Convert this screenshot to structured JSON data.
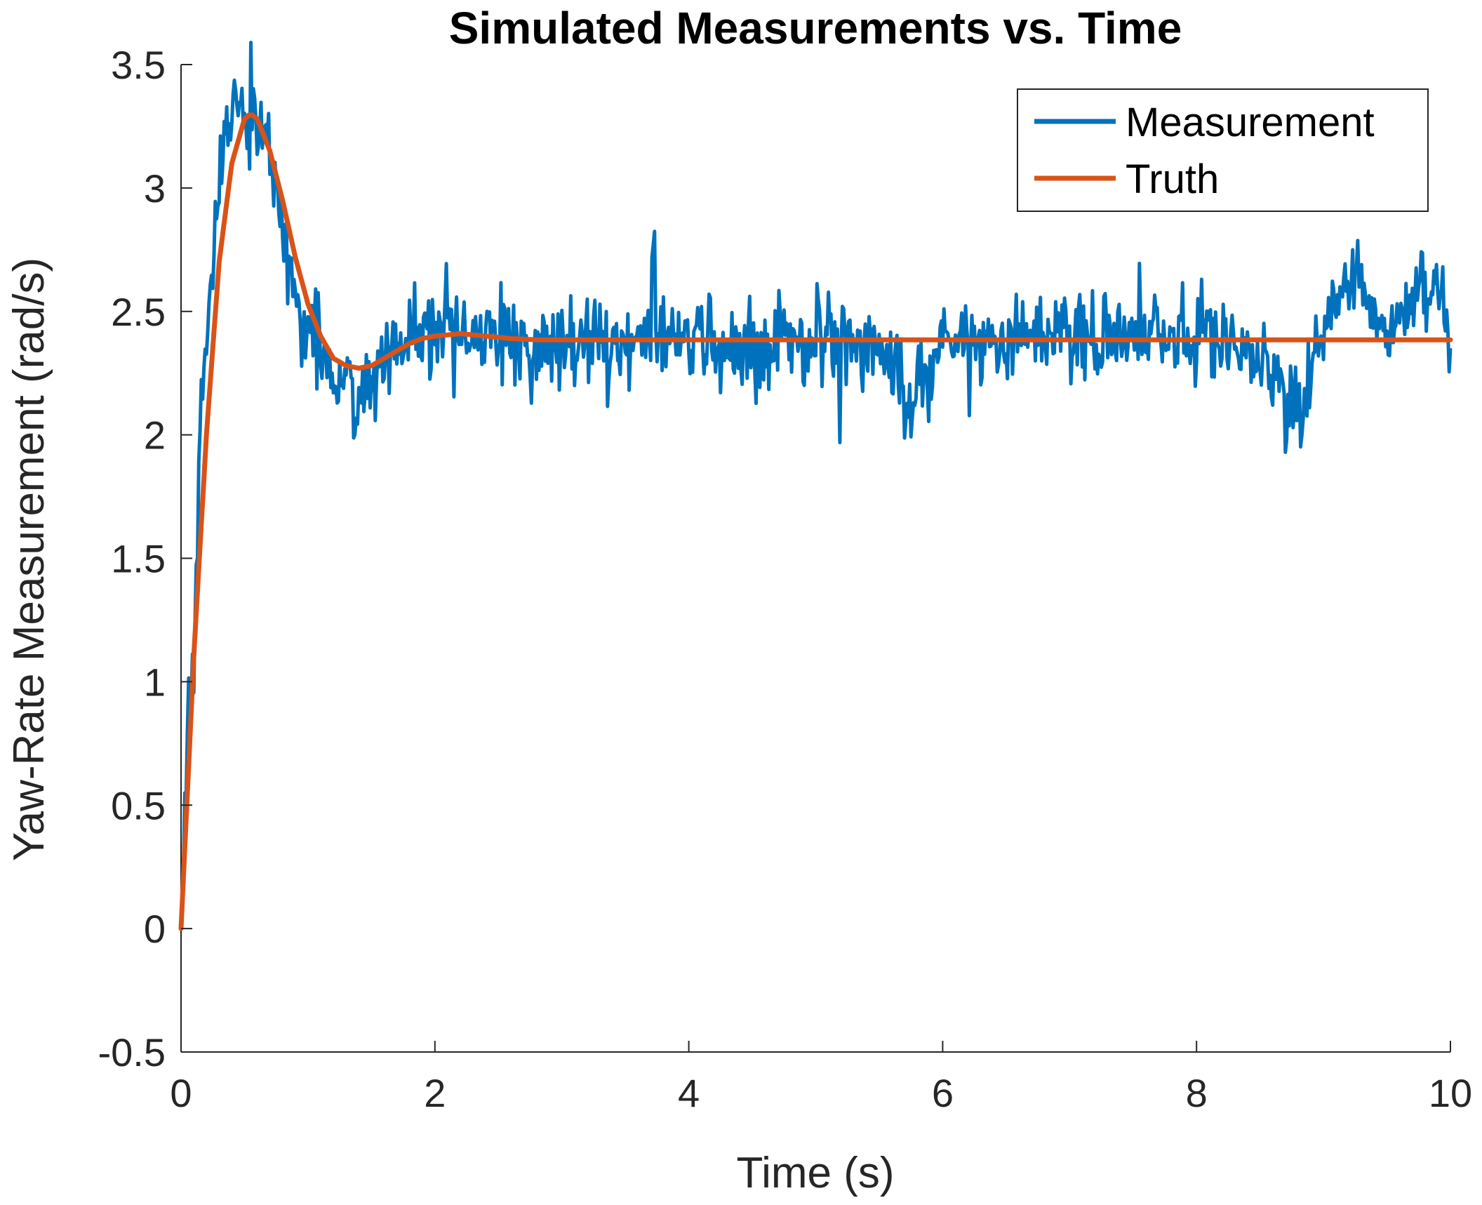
{
  "chart_data": {
    "type": "line",
    "title": "Simulated Measurements vs. Time",
    "xlabel": "Time (s)",
    "ylabel": "Yaw-Rate Measurement (rad/s)",
    "xlim": [
      0,
      10
    ],
    "ylim": [
      -0.5,
      3.5
    ],
    "xticks": [
      0,
      2,
      4,
      6,
      8,
      10
    ],
    "xtick_labels": [
      "0",
      "2",
      "4",
      "6",
      "8",
      "10"
    ],
    "yticks": [
      -0.5,
      0,
      0.5,
      1,
      1.5,
      2,
      2.5,
      3,
      3.5
    ],
    "ytick_labels": [
      "-0.5",
      "0",
      "0.5",
      "1",
      "1.5",
      "2",
      "2.5",
      "3",
      "3.5"
    ],
    "grid": false,
    "legend_position": "top-right",
    "series": [
      {
        "name": "Measurement",
        "color": "#0072BD",
        "noise_std": 0.09,
        "x": [
          0,
          0.05,
          0.1,
          0.15,
          0.2,
          0.25,
          0.3,
          0.35,
          0.4,
          0.45,
          0.5,
          0.55,
          0.6,
          0.65,
          0.7,
          0.75,
          0.8,
          0.85,
          0.9,
          0.95,
          1.0,
          1.1,
          1.2,
          1.3,
          1.4,
          1.5,
          1.6,
          1.7,
          1.8,
          2.0,
          2.2,
          2.4,
          2.6,
          2.8,
          3.0,
          3.2,
          3.5,
          3.7,
          3.72,
          3.75,
          4.0,
          4.5,
          5.0,
          5.5,
          5.75,
          6.0,
          6.5,
          7.0,
          7.5,
          8.0,
          8.5,
          8.8,
          9.0,
          9.2,
          9.5,
          9.9,
          10.0
        ],
        "y": [
          0.0,
          0.75,
          1.05,
          1.95,
          2.45,
          2.75,
          3.05,
          3.2,
          3.3,
          3.42,
          3.25,
          3.4,
          3.22,
          3.28,
          3.15,
          3.0,
          2.82,
          2.68,
          2.55,
          2.5,
          2.42,
          2.35,
          2.25,
          2.22,
          2.18,
          2.2,
          2.3,
          2.35,
          2.4,
          2.38,
          2.42,
          2.36,
          2.4,
          2.35,
          2.38,
          2.4,
          2.36,
          2.4,
          2.82,
          2.35,
          2.38,
          2.36,
          2.4,
          2.38,
          2.12,
          2.4,
          2.36,
          2.42,
          2.38,
          2.4,
          2.35,
          2.07,
          2.4,
          2.7,
          2.38,
          2.66,
          2.34
        ]
      },
      {
        "name": "Truth",
        "color": "#D95319",
        "x": [
          0,
          0.1,
          0.2,
          0.3,
          0.4,
          0.5,
          0.55,
          0.6,
          0.7,
          0.8,
          0.9,
          1.0,
          1.1,
          1.2,
          1.3,
          1.4,
          1.5,
          1.6,
          1.7,
          1.8,
          1.9,
          2.0,
          2.2,
          2.4,
          2.6,
          2.8,
          3.0,
          3.5,
          4.0,
          5.0,
          6.0,
          7.0,
          8.0,
          9.0,
          10.0
        ],
        "y": [
          0.0,
          1.1,
          2.0,
          2.7,
          3.1,
          3.28,
          3.3,
          3.28,
          3.15,
          2.95,
          2.72,
          2.53,
          2.4,
          2.31,
          2.28,
          2.27,
          2.28,
          2.31,
          2.34,
          2.37,
          2.39,
          2.4,
          2.41,
          2.4,
          2.39,
          2.385,
          2.385,
          2.385,
          2.385,
          2.385,
          2.385,
          2.385,
          2.385,
          2.385,
          2.385
        ]
      }
    ]
  }
}
